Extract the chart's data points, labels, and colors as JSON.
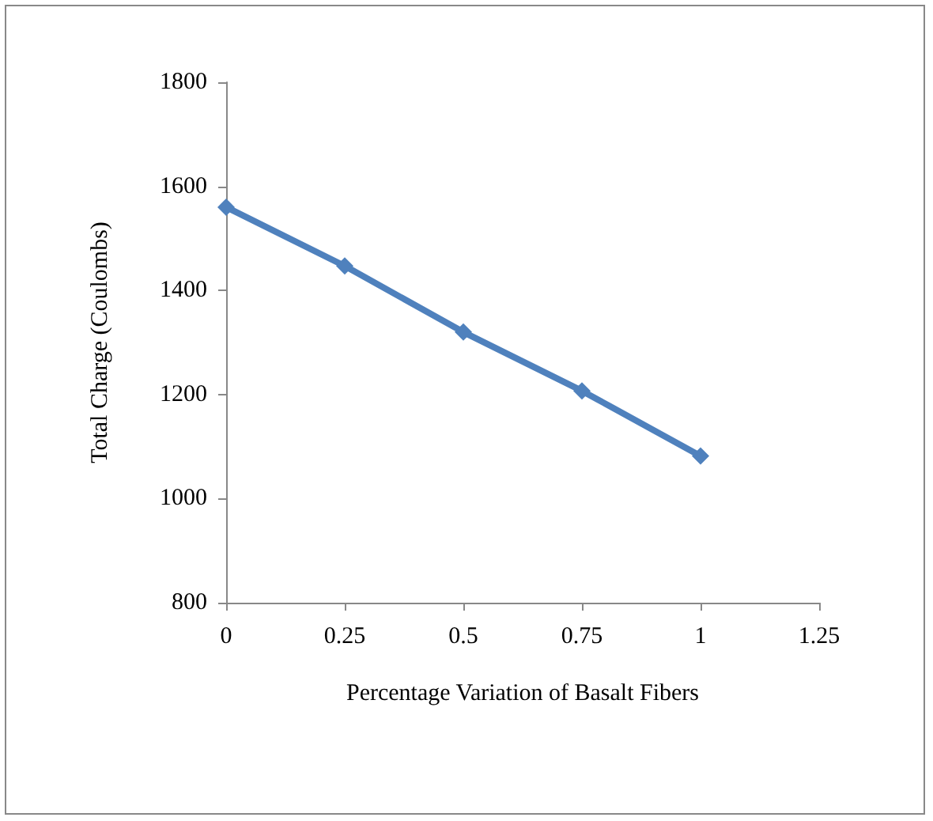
{
  "chart_data": {
    "type": "line",
    "xlabel": "Percentage Variation of Basalt Fibers",
    "ylabel": "Total Charge (Coulombs)",
    "x": [
      0,
      0.25,
      0.5,
      0.75,
      1
    ],
    "series": [
      {
        "color": "#4f81bd",
        "values": [
          1560,
          1447,
          1320,
          1207,
          1082
        ]
      }
    ],
    "xlim": [
      0,
      1.25
    ],
    "xticks": [
      0,
      0.25,
      0.5,
      0.75,
      1,
      1.25
    ],
    "ylim": [
      800,
      1800
    ],
    "yticks": [
      800,
      1000,
      1200,
      1400,
      1600,
      1800
    ],
    "marker": "diamond",
    "line_style": "solid"
  }
}
